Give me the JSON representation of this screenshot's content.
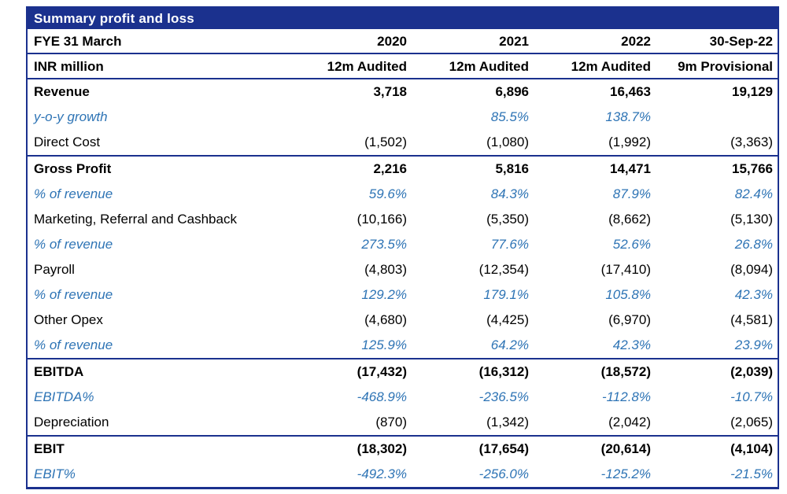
{
  "table": {
    "title": "Summary profit and loss",
    "fye_label": "FYE 31 March",
    "unit_label": "INR million",
    "columns": [
      "2020",
      "2021",
      "2022",
      "30-Sep-22"
    ],
    "period_labels": [
      "12m Audited",
      "12m Audited",
      "12m Audited",
      "9m Provisional"
    ],
    "colors": {
      "header_bg": "#1B318E",
      "header_text": "#FFFFFF",
      "accent_blue": "#2E74B5",
      "border_navy": "#1B318E",
      "body_text": "#000000"
    }
  },
  "sections": [
    {
      "rows": [
        {
          "label": "Revenue",
          "style": "bold",
          "values": [
            "3,718",
            "6,896",
            "16,463",
            "19,129"
          ]
        },
        {
          "label": "y-o-y growth",
          "style": "pct",
          "values": [
            "",
            "85.5%",
            "138.7%",
            ""
          ]
        },
        {
          "label": "Direct Cost",
          "style": "normal",
          "values": [
            "(1,502)",
            "(1,080)",
            "(1,992)",
            "(3,363)"
          ]
        }
      ]
    },
    {
      "rows": [
        {
          "label": "Gross Profit",
          "style": "bold",
          "values": [
            "2,216",
            "5,816",
            "14,471",
            "15,766"
          ]
        },
        {
          "label": "% of revenue",
          "style": "pct",
          "values": [
            "59.6%",
            "84.3%",
            "87.9%",
            "82.4%"
          ]
        },
        {
          "label": "Marketing, Referral and Cashback",
          "style": "normal",
          "values": [
            "(10,166)",
            "(5,350)",
            "(8,662)",
            "(5,130)"
          ]
        },
        {
          "label": "% of revenue",
          "style": "pct",
          "values": [
            "273.5%",
            "77.6%",
            "52.6%",
            "26.8%"
          ]
        },
        {
          "label": "Payroll",
          "style": "normal",
          "values": [
            "(4,803)",
            "(12,354)",
            "(17,410)",
            "(8,094)"
          ]
        },
        {
          "label": "% of revenue",
          "style": "pct",
          "values": [
            "129.2%",
            "179.1%",
            "105.8%",
            "42.3%"
          ]
        },
        {
          "label": "Other Opex",
          "style": "normal",
          "values": [
            "(4,680)",
            "(4,425)",
            "(6,970)",
            "(4,581)"
          ]
        },
        {
          "label": "% of revenue",
          "style": "pct",
          "values": [
            "125.9%",
            "64.2%",
            "42.3%",
            "23.9%"
          ]
        }
      ]
    },
    {
      "rows": [
        {
          "label": "EBITDA",
          "style": "bold",
          "values": [
            "(17,432)",
            "(16,312)",
            "(18,572)",
            "(2,039)"
          ]
        },
        {
          "label": "EBITDA%",
          "style": "pct",
          "values": [
            "-468.9%",
            "-236.5%",
            "-112.8%",
            "-10.7%"
          ]
        },
        {
          "label": "Depreciation",
          "style": "normal",
          "values": [
            "(870)",
            "(1,342)",
            "(2,042)",
            "(2,065)"
          ]
        }
      ]
    },
    {
      "rows": [
        {
          "label": "EBIT",
          "style": "bold",
          "values": [
            "(18,302)",
            "(17,654)",
            "(20,614)",
            "(4,104)"
          ]
        },
        {
          "label": "EBIT%",
          "style": "pct",
          "values": [
            "-492.3%",
            "-256.0%",
            "-125.2%",
            "-21.5%"
          ]
        }
      ]
    }
  ]
}
